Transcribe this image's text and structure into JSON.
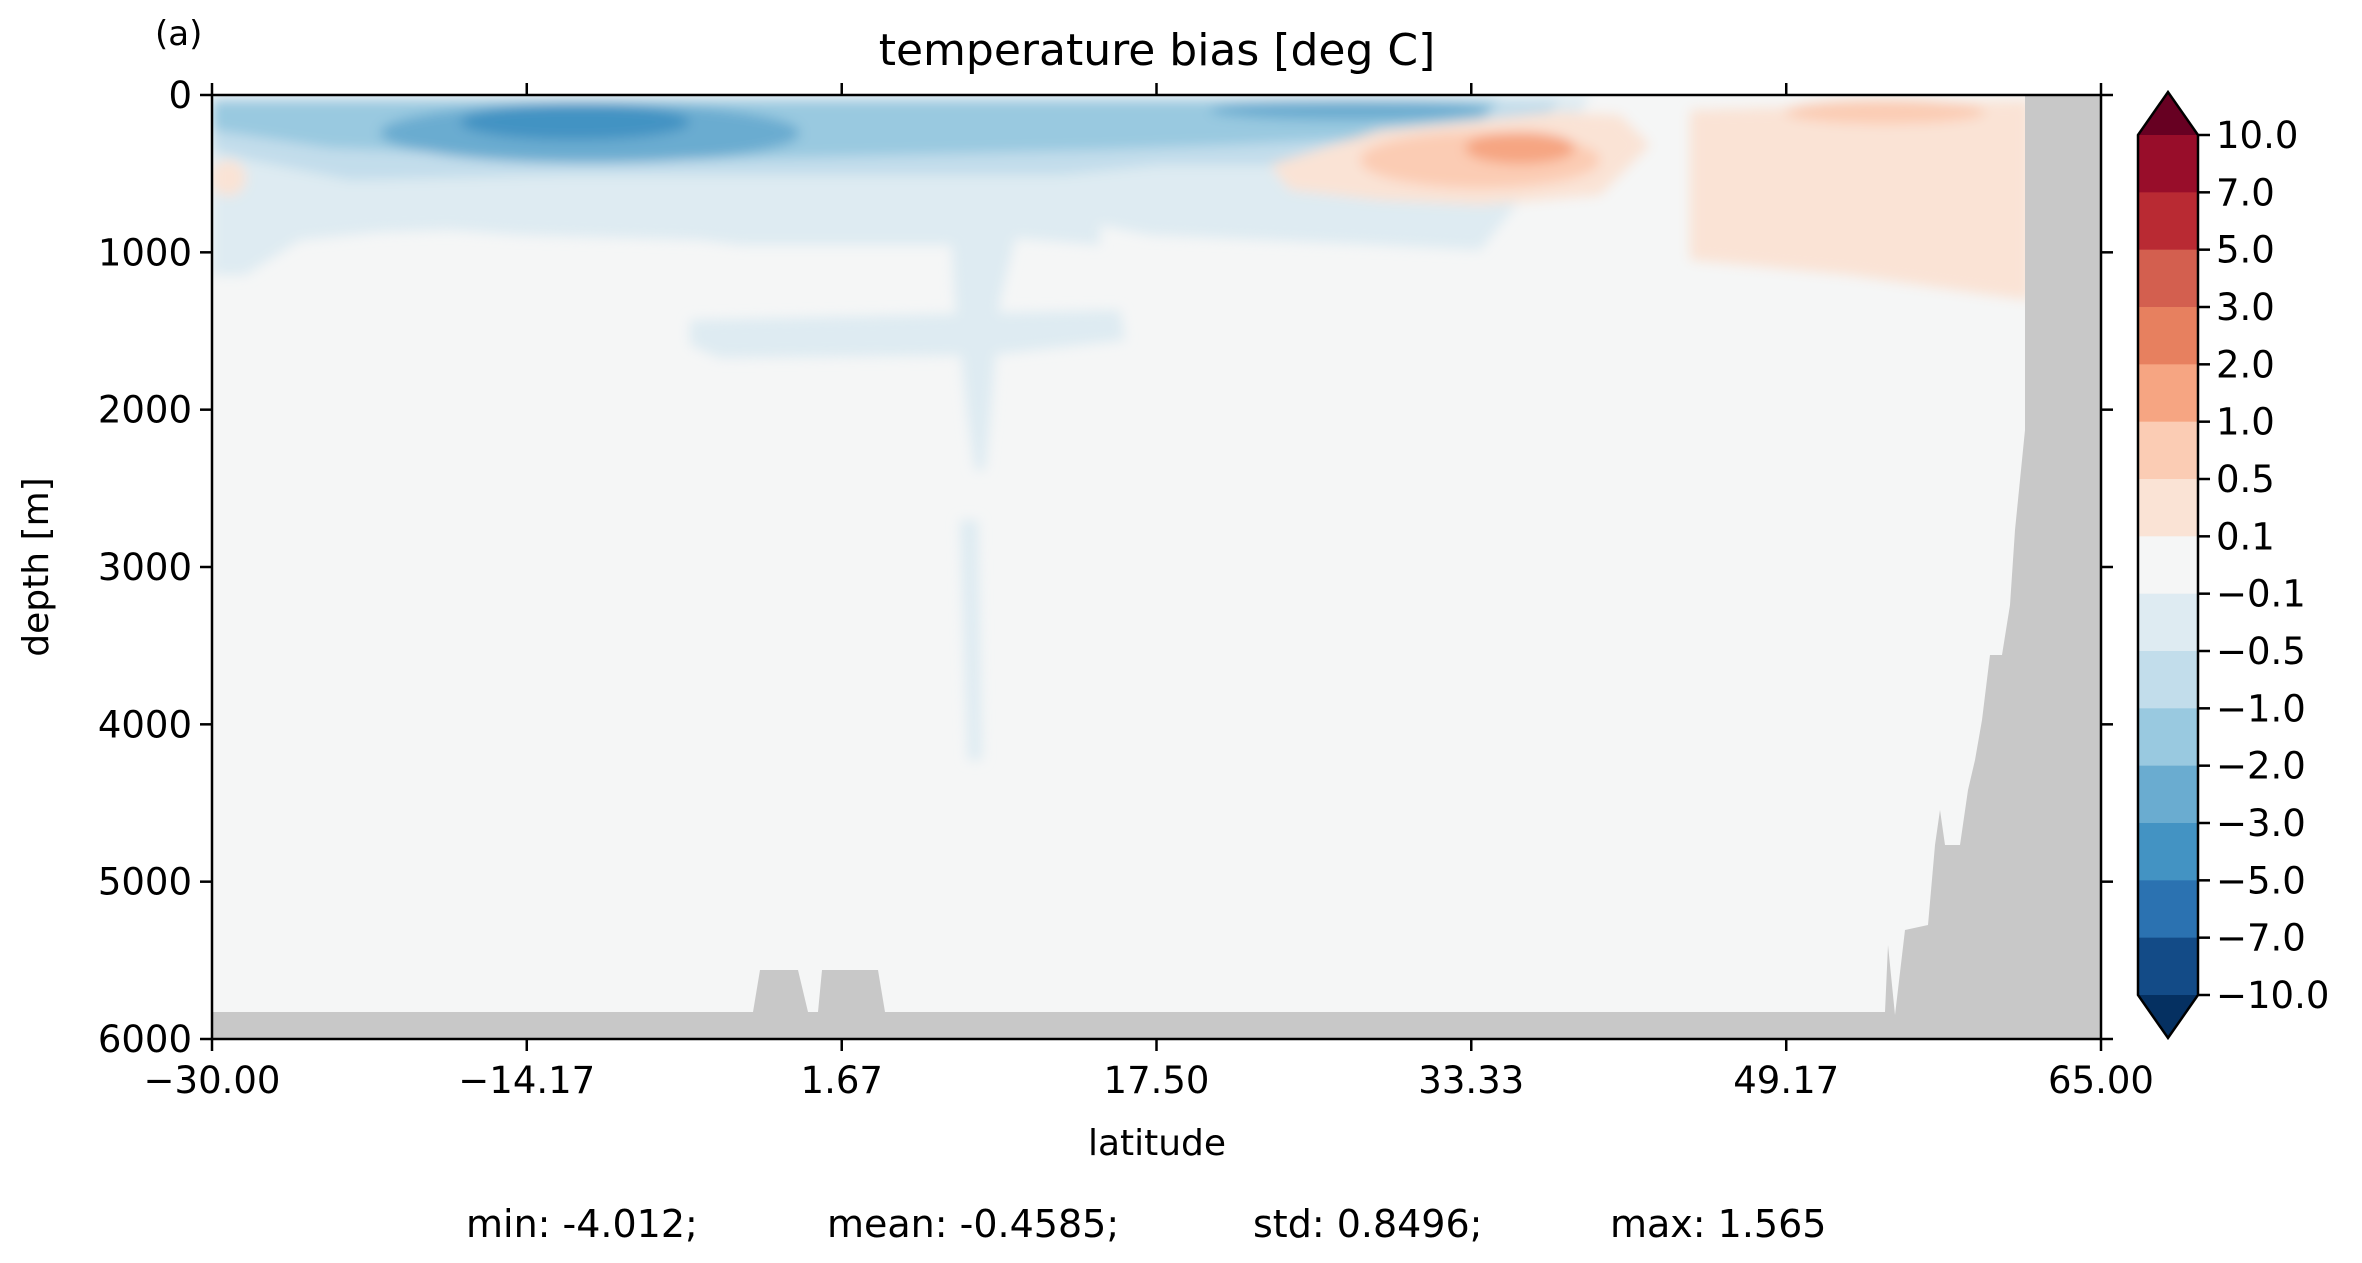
{
  "panel_label": "(a)",
  "stats": {
    "min": "min: -4.012;",
    "mean": "mean: -0.4585;",
    "std": "std: 0.8496;",
    "max": "max: 1.565"
  },
  "colors": {
    "land": "#c8c8c8",
    "levels": [
      "#053061",
      "#134b87",
      "#2b72b1",
      "#4393c3",
      "#6aacd0",
      "#99c9e0",
      "#c2ddeb",
      "#deebf2",
      "#f5f6f6",
      "#fae3d5",
      "#fbccb4",
      "#f6a582",
      "#e7805f",
      "#d35f4f",
      "#b92a33",
      "#980d2a",
      "#670022"
    ]
  },
  "chart_data": {
    "type": "heatmap",
    "title": "temperature bias [deg C]",
    "xlabel": "latitude",
    "ylabel": "depth [m]",
    "xlim": [
      -30,
      65
    ],
    "ylim": [
      6000,
      0
    ],
    "xticks": [
      "−30.00",
      "−14.17",
      "1.67",
      "17.50",
      "33.33",
      "49.17",
      "65.00"
    ],
    "xtick_values": [
      -30,
      -14.17,
      1.67,
      17.5,
      33.33,
      49.17,
      65
    ],
    "yticks": [
      "0",
      "1000",
      "2000",
      "3000",
      "4000",
      "5000",
      "6000"
    ],
    "ytick_values": [
      0,
      1000,
      2000,
      3000,
      4000,
      5000,
      6000
    ],
    "colorbar": {
      "labels": [
        "10.0",
        "7.0",
        "5.0",
        "3.0",
        "2.0",
        "1.0",
        "0.5",
        "0.1",
        "−0.1",
        "−0.5",
        "−1.0",
        "−2.0",
        "−3.0",
        "−5.0",
        "−7.0",
        "−10.0"
      ],
      "levels": [
        10,
        7,
        5,
        3,
        2,
        1,
        0.5,
        0.1,
        -0.1,
        -0.5,
        -1,
        -2,
        -3,
        -5,
        -7,
        -10
      ],
      "extend": "both",
      "colormap": "RdBu_r"
    },
    "features": [
      {
        "region": "surface band -28 to 40 lat, 0-400 m",
        "bias": -2.5
      },
      {
        "region": "core -16 to -6 lat, ~150 m",
        "bias": -4.0
      },
      {
        "region": "subsurface 24 to 44 lat, 300-600 m",
        "bias": 1.5
      },
      {
        "region": "55 to 63 lat, 0-1200 m",
        "bias": 0.3
      },
      {
        "region": "-30 to 40 lat, 400-1200 m",
        "bias": -0.3
      },
      {
        "region": "5 to 8 lat, 1000-4300 m",
        "bias": -0.3
      }
    ]
  }
}
